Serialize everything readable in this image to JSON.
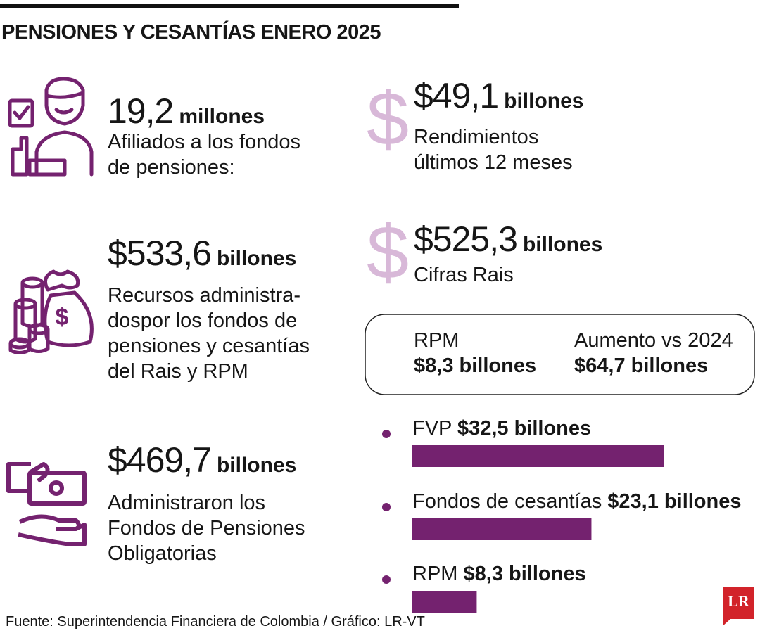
{
  "title": "PENSIONES Y CESANTÍAS ENERO 2025",
  "left_stats": [
    {
      "figure": "19,2",
      "unit": "millones",
      "description": [
        "Afiliados a los fondos",
        "de pensiones:"
      ]
    },
    {
      "figure": "$533,6",
      "unit": "billones",
      "description": [
        "Recursos administra-",
        "dospor los fondos de",
        "pensiones y cesantías",
        "del Rais y RPM"
      ]
    },
    {
      "figure": "$469,7",
      "unit": "billones",
      "description": [
        "Administraron los",
        "Fondos de Pensiones",
        "Obligatorias"
      ]
    }
  ],
  "right_stats": [
    {
      "figure": "$49,1",
      "unit": "billones",
      "description": [
        "Rendimientos",
        "últimos 12 meses"
      ]
    },
    {
      "figure": "$525,3",
      "unit": "billones",
      "description": [
        "Cifras Rais"
      ]
    }
  ],
  "box": [
    {
      "label": "RPM",
      "value": "$8,3 billones"
    },
    {
      "label": "Aumento vs 2024",
      "value": "$64,7 billones"
    }
  ],
  "chart_data": {
    "type": "bar",
    "orientation": "horizontal",
    "categories": [
      "FVP",
      "Fondos de cesantías",
      "RPM"
    ],
    "values": [
      32.5,
      23.1,
      8.3
    ],
    "value_labels": [
      "$32,5 billones",
      "$23,1 billones",
      "$8,3 billones"
    ],
    "color": "#74226f"
  },
  "source": "Fuente: Superintendencia Financiera de Colombia / Gráfico: LR-VT",
  "logo": "LR"
}
